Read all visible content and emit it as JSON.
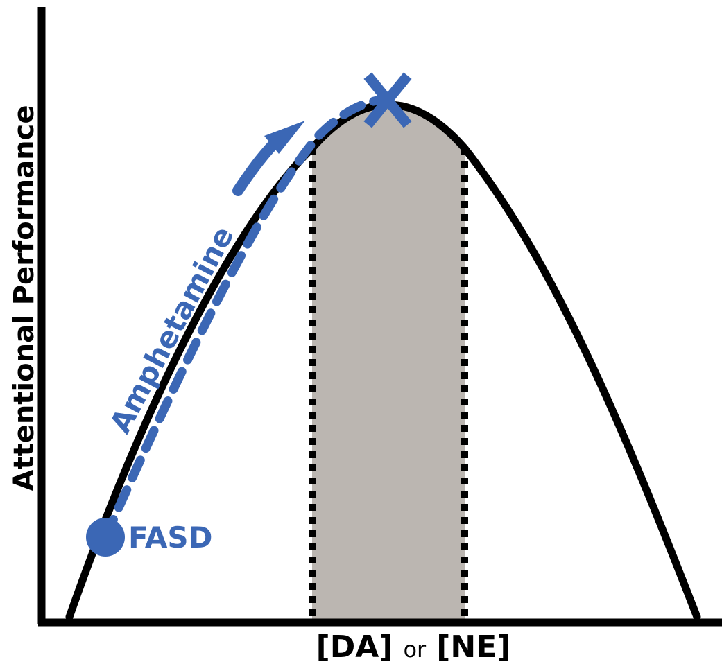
{
  "axes": {
    "y_label": "Attentional Performance",
    "x_label": {
      "part1": "[DA]",
      "part2": "or",
      "part3": "[NE]"
    }
  },
  "annotations": {
    "drug_label": "Amphetamine",
    "start_label": "FASD"
  },
  "icons": {
    "start_marker": "filled-circle",
    "optimum_marker": "x-mark",
    "direction_arrow": "curved-arrow"
  },
  "colors": {
    "curve": "#000000",
    "accent": "#3b67b5",
    "optimal_zone_fill": "#bbb6b1",
    "background": "#ffffff"
  }
}
